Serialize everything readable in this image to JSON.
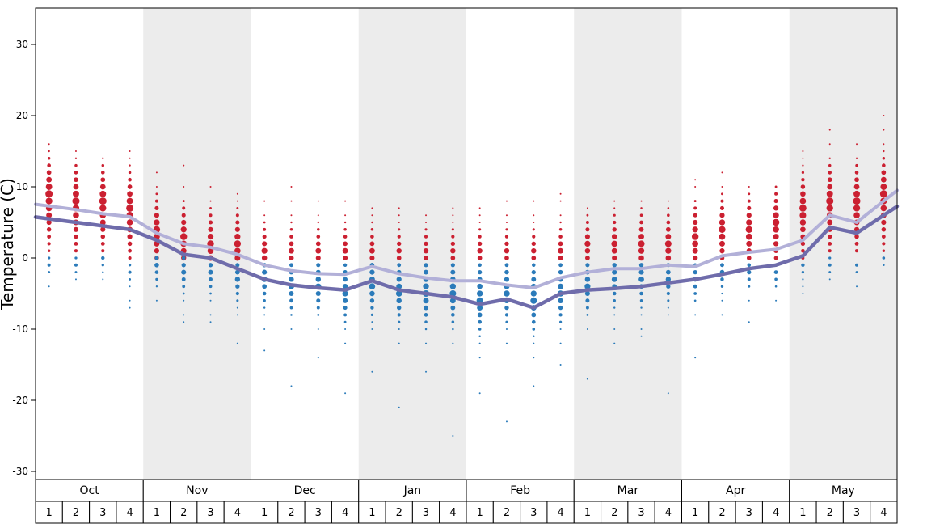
{
  "chart_data": {
    "type": "scatter",
    "title": "",
    "ylabel": "Temperature (C)",
    "ylim": [
      -31,
      35
    ],
    "yticks": [
      30,
      20,
      10,
      0,
      -10,
      -20,
      -30
    ],
    "months": [
      {
        "label": "Oct",
        "shaded": false
      },
      {
        "label": "Nov",
        "shaded": true
      },
      {
        "label": "Dec",
        "shaded": false
      },
      {
        "label": "Jan",
        "shaded": true
      },
      {
        "label": "Feb",
        "shaded": false
      },
      {
        "label": "Mar",
        "shaded": true
      },
      {
        "label": "Apr",
        "shaded": false
      },
      {
        "label": "May",
        "shaded": true
      }
    ],
    "week_labels": [
      "1",
      "2",
      "3",
      "4"
    ],
    "lines": [
      {
        "name": "average-max",
        "color": "#b2b0d8",
        "width": 4,
        "values": [
          7.3,
          6.8,
          6.2,
          5.8,
          3.5,
          2.0,
          1.5,
          0.5,
          -1.0,
          -1.8,
          -2.2,
          -2.3,
          -1.2,
          -2.2,
          -2.8,
          -3.2,
          -3.2,
          -3.8,
          -4.2,
          -2.8,
          -2.0,
          -1.5,
          -1.5,
          -1.0,
          -1.2,
          0.3,
          0.8,
          1.2,
          2.5,
          6.0,
          5.0,
          8.0
        ]
      },
      {
        "name": "average-min",
        "color": "#6f6cab",
        "width": 4.5,
        "values": [
          5.5,
          5.0,
          4.5,
          4.0,
          2.5,
          0.5,
          0.0,
          -1.5,
          -3.0,
          -3.8,
          -4.2,
          -4.5,
          -3.2,
          -4.5,
          -5.0,
          -5.5,
          -6.5,
          -5.8,
          -7.0,
          -5.0,
          -4.5,
          -4.3,
          -4.0,
          -3.5,
          -3.0,
          -2.3,
          -1.5,
          -1.0,
          0.3,
          4.3,
          3.5,
          6.0
        ]
      }
    ],
    "dots": {
      "red_color": "#cb2031",
      "blue_color": "#2b7bba",
      "weeks": [
        {
          "red": {
            "min": 1,
            "max": 16,
            "peak": 9,
            "amp": 4.5
          },
          "blue": {
            "min": -4,
            "max": 0,
            "peak": -1,
            "amp": 2.0
          }
        },
        {
          "red": {
            "min": 1,
            "max": 15,
            "peak": 8,
            "amp": 4.5
          },
          "blue": {
            "min": -3,
            "max": 0,
            "peak": -1,
            "amp": 2.0
          }
        },
        {
          "red": {
            "min": 1,
            "max": 14,
            "peak": 8,
            "amp": 4.5
          },
          "blue": {
            "min": -3,
            "max": 0,
            "peak": 0,
            "amp": 2.2
          }
        },
        {
          "red": {
            "min": 0,
            "max": 15,
            "peak": 7,
            "amp": 4.5
          },
          "blue": {
            "min": -7,
            "max": -1,
            "peak": -2,
            "amp": 2.0
          }
        },
        {
          "red": {
            "min": 0,
            "max": 12,
            "peak": 4,
            "amp": 4.2
          },
          "blue": {
            "min": -6,
            "max": 0,
            "peak": -1,
            "amp": 2.8
          }
        },
        {
          "red": {
            "min": 0,
            "max": 13,
            "peak": 3,
            "amp": 4.2
          },
          "blue": {
            "min": -9,
            "max": 0,
            "peak": -2,
            "amp": 3.0
          }
        },
        {
          "red": {
            "min": 0,
            "max": 10,
            "peak": 2,
            "amp": 4.2
          },
          "blue": {
            "min": -9,
            "max": -1,
            "peak": -2,
            "amp": 3.0
          }
        },
        {
          "red": {
            "min": 0,
            "max": 9,
            "peak": 2,
            "amp": 4.2
          },
          "blue": {
            "min": -12,
            "max": -1,
            "peak": -3,
            "amp": 3.2
          }
        },
        {
          "red": {
            "min": 0,
            "max": 8,
            "peak": 1,
            "amp": 3.6
          },
          "blue": {
            "min": -13,
            "max": -1,
            "peak": -3,
            "amp": 3.4
          }
        },
        {
          "red": {
            "min": 0,
            "max": 10,
            "peak": 1,
            "amp": 3.4
          },
          "blue": {
            "min": -18,
            "max": -1,
            "peak": -4,
            "amp": 3.5
          }
        },
        {
          "red": {
            "min": 0,
            "max": 8,
            "peak": 1,
            "amp": 3.4
          },
          "blue": {
            "min": -14,
            "max": -1,
            "peak": -4,
            "amp": 3.6
          }
        },
        {
          "red": {
            "min": 0,
            "max": 8,
            "peak": 1,
            "amp": 3.4
          },
          "blue": {
            "min": -19,
            "max": -1,
            "peak": -5,
            "amp": 3.6
          }
        },
        {
          "red": {
            "min": 0,
            "max": 7,
            "peak": 1,
            "amp": 3.4
          },
          "blue": {
            "min": -16,
            "max": -1,
            "peak": -4,
            "amp": 3.8
          }
        },
        {
          "red": {
            "min": 0,
            "max": 7,
            "peak": 1,
            "amp": 3.2
          },
          "blue": {
            "min": -21,
            "max": -1,
            "peak": -5,
            "amp": 3.8
          }
        },
        {
          "red": {
            "min": 0,
            "max": 6,
            "peak": 1,
            "amp": 3.2
          },
          "blue": {
            "min": -16,
            "max": -1,
            "peak": -5,
            "amp": 4.0
          }
        },
        {
          "red": {
            "min": 0,
            "max": 7,
            "peak": 1,
            "amp": 3.2
          },
          "blue": {
            "min": -25,
            "max": -1,
            "peak": -5,
            "amp": 4.0
          }
        },
        {
          "red": {
            "min": 0,
            "max": 7,
            "peak": 1,
            "amp": 3.2
          },
          "blue": {
            "min": -19,
            "max": -1,
            "peak": -6,
            "amp": 4.0
          }
        },
        {
          "red": {
            "min": 0,
            "max": 8,
            "peak": 1,
            "amp": 3.2
          },
          "blue": {
            "min": -23,
            "max": -1,
            "peak": -5,
            "amp": 3.8
          }
        },
        {
          "red": {
            "min": 0,
            "max": 8,
            "peak": 1,
            "amp": 3.2
          },
          "blue": {
            "min": -18,
            "max": -1,
            "peak": -6,
            "amp": 4.0
          }
        },
        {
          "red": {
            "min": 0,
            "max": 9,
            "peak": 1,
            "amp": 3.4
          },
          "blue": {
            "min": -15,
            "max": -1,
            "peak": -5,
            "amp": 3.8
          }
        },
        {
          "red": {
            "min": 0,
            "max": 7,
            "peak": 2,
            "amp": 3.6
          },
          "blue": {
            "min": -17,
            "max": -1,
            "peak": -4,
            "amp": 3.6
          }
        },
        {
          "red": {
            "min": 0,
            "max": 8,
            "peak": 2,
            "amp": 3.8
          },
          "blue": {
            "min": -12,
            "max": -1,
            "peak": -3,
            "amp": 3.4
          }
        },
        {
          "red": {
            "min": 0,
            "max": 8,
            "peak": 2,
            "amp": 4.0
          },
          "blue": {
            "min": -11,
            "max": -1,
            "peak": -3,
            "amp": 3.4
          }
        },
        {
          "red": {
            "min": 0,
            "max": 8,
            "peak": 2,
            "amp": 4.0
          },
          "blue": {
            "min": -19,
            "max": -1,
            "peak": -3,
            "amp": 3.2
          }
        },
        {
          "red": {
            "min": 0,
            "max": 11,
            "peak": 3,
            "amp": 4.2
          },
          "blue": {
            "min": -14,
            "max": -1,
            "peak": -3,
            "amp": 3.0
          }
        },
        {
          "red": {
            "min": 0,
            "max": 12,
            "peak": 4,
            "amp": 4.2
          },
          "blue": {
            "min": -8,
            "max": -1,
            "peak": -2,
            "amp": 2.8
          }
        },
        {
          "red": {
            "min": 0,
            "max": 10,
            "peak": 4,
            "amp": 4.2
          },
          "blue": {
            "min": -9,
            "max": -1,
            "peak": -2,
            "amp": 2.6
          }
        },
        {
          "red": {
            "min": 0,
            "max": 10,
            "peak": 5,
            "amp": 4.2
          },
          "blue": {
            "min": -6,
            "max": -1,
            "peak": -2,
            "amp": 2.4
          }
        },
        {
          "red": {
            "min": 0,
            "max": 15,
            "peak": 7,
            "amp": 4.4
          },
          "blue": {
            "min": -5,
            "max": -1,
            "peak": -1,
            "amp": 2.2
          }
        },
        {
          "red": {
            "min": 1,
            "max": 18,
            "peak": 8,
            "amp": 4.5
          },
          "blue": {
            "min": -3,
            "max": 0,
            "peak": -1,
            "amp": 2.0
          }
        },
        {
          "red": {
            "min": 1,
            "max": 16,
            "peak": 8,
            "amp": 4.5
          },
          "blue": {
            "min": -4,
            "max": -1,
            "peak": -1,
            "amp": 2.0
          }
        },
        {
          "red": {
            "min": 0,
            "max": 20,
            "peak": 9,
            "amp": 4.5
          },
          "blue": {
            "min": -1,
            "max": 0,
            "peak": 0,
            "amp": 1.8
          }
        }
      ]
    },
    "colors": {
      "band": "#ececec",
      "axis": "#000000",
      "background": "#ffffff"
    }
  }
}
